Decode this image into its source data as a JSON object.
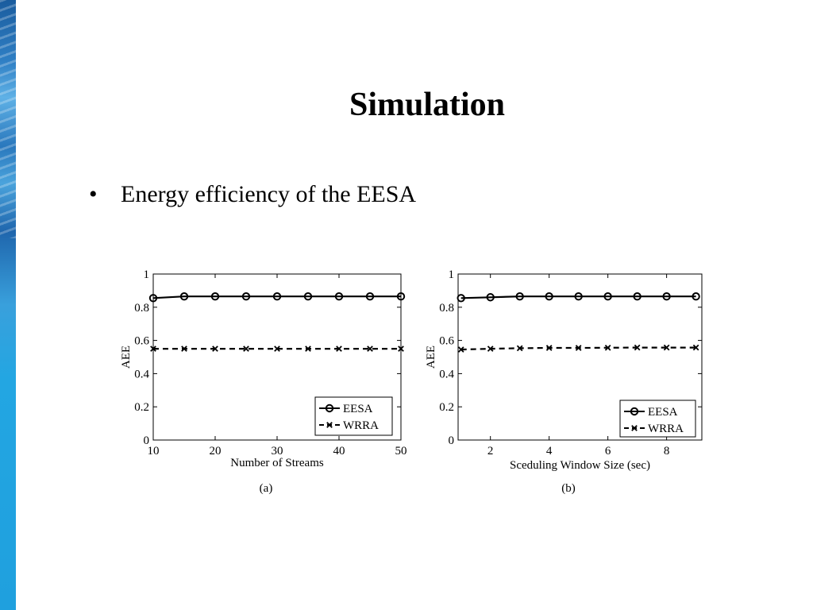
{
  "slide": {
    "title": "Simulation",
    "bullets": [
      {
        "glyph": "•",
        "text": "Energy efficiency of the EESA"
      }
    ]
  },
  "chart_data": [
    {
      "type": "line",
      "caption": "(a)",
      "xlabel": "Number of Streams",
      "ylabel": "AEE",
      "xlim": [
        10,
        50
      ],
      "ylim": [
        0,
        1
      ],
      "xticks": [
        10,
        20,
        30,
        40,
        50
      ],
      "xtick_labels": [
        "10",
        "20",
        "30",
        "40",
        "50"
      ],
      "yticks": [
        0,
        0.2,
        0.4,
        0.6,
        0.8,
        1
      ],
      "ytick_labels": [
        "0",
        "0.2",
        "0.4",
        "0.6",
        "0.8",
        "1"
      ],
      "grid": false,
      "legend_position": "bottom-right",
      "x": [
        10,
        15,
        20,
        25,
        30,
        35,
        40,
        45,
        50
      ],
      "series": [
        {
          "name": "EESA",
          "style": "solid",
          "marker": "circle",
          "values": [
            0.855,
            0.865,
            0.865,
            0.865,
            0.865,
            0.865,
            0.865,
            0.865,
            0.865
          ]
        },
        {
          "name": "WRRA",
          "style": "dashed",
          "marker": "x",
          "values": [
            0.55,
            0.55,
            0.55,
            0.55,
            0.55,
            0.55,
            0.55,
            0.55,
            0.55
          ]
        }
      ]
    },
    {
      "type": "line",
      "caption": "(b)",
      "xlabel": "Sceduling Window Size (sec)",
      "ylabel": "AEE",
      "xlim": [
        0.9,
        9.2
      ],
      "ylim": [
        0,
        1
      ],
      "xticks": [
        2,
        4,
        6,
        8
      ],
      "xtick_labels": [
        "2",
        "4",
        "6",
        "8"
      ],
      "yticks": [
        0,
        0.2,
        0.4,
        0.6,
        0.8,
        1
      ],
      "ytick_labels": [
        "0",
        "0.2",
        "0.4",
        "0.6",
        "0.8",
        "1"
      ],
      "grid": false,
      "legend_position": "bottom-right",
      "x": [
        1,
        2,
        3,
        4,
        5,
        6,
        7,
        8,
        9
      ],
      "series": [
        {
          "name": "EESA",
          "style": "solid",
          "marker": "circle",
          "values": [
            0.855,
            0.86,
            0.865,
            0.865,
            0.865,
            0.865,
            0.865,
            0.865,
            0.865
          ]
        },
        {
          "name": "WRRA",
          "style": "dashed",
          "marker": "x",
          "values": [
            0.545,
            0.55,
            0.553,
            0.555,
            0.555,
            0.556,
            0.557,
            0.557,
            0.557
          ]
        }
      ]
    }
  ]
}
